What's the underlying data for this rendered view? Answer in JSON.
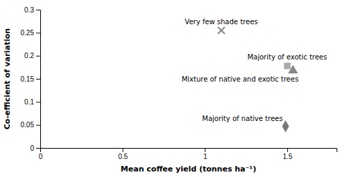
{
  "chart_data": {
    "type": "scatter",
    "xlabel": "Mean coffee yield (tonnes ha⁻¹)",
    "ylabel": "Co-efficient of variation",
    "xlim": [
      0,
      1.8
    ],
    "ylim": [
      0,
      0.3
    ],
    "xticks": [
      0,
      0.5,
      1,
      1.5
    ],
    "yticks": [
      0,
      0.05,
      0.1,
      0.15,
      0.2,
      0.25,
      0.3
    ],
    "series": [
      {
        "name": "Very few shade trees",
        "color": "#888888",
        "marker": "x",
        "x": [
          1.1
        ],
        "values": [
          0.255
        ]
      },
      {
        "name": "Majority of exotic trees",
        "color": "#aaaaaa",
        "marker": "square",
        "x": [
          1.5
        ],
        "values": [
          0.178
        ]
      },
      {
        "name": "Mixture of native and exotic trees",
        "color": "#888888",
        "marker": "triangle",
        "x": [
          1.535
        ],
        "values": [
          0.168
        ]
      },
      {
        "name": "Majority of native trees",
        "color": "#777777",
        "marker": "diamond",
        "x": [
          1.49
        ],
        "values": [
          0.047
        ]
      }
    ]
  }
}
